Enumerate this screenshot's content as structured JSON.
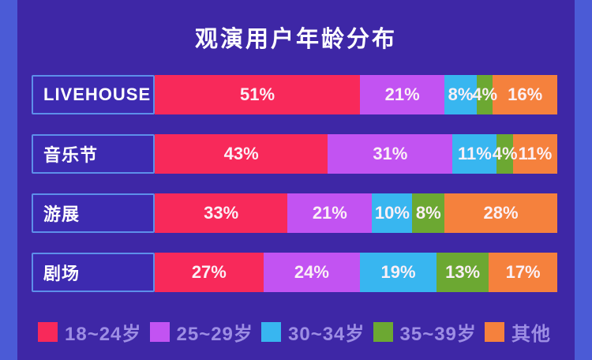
{
  "page": {
    "title": "观演用户年龄分布"
  },
  "colors": {
    "frame": "#4b5bd6",
    "panel_background": "#3e27a6",
    "label_box_background": "#3d2ab0",
    "label_box_border": "#5d8fea",
    "bar_value_text": "#fbf0f6",
    "legend_text": "#9d8ee4",
    "title_text": "#ffffff"
  },
  "chart_data": {
    "type": "bar",
    "orientation": "horizontal-stacked",
    "title": "观演用户年龄分布",
    "categories": [
      "LIVEHOUSE",
      "音乐节",
      "游展",
      "剧场"
    ],
    "series": [
      {
        "name": "18~24岁",
        "color": "#f8295a",
        "values": [
          51,
          43,
          33,
          27
        ]
      },
      {
        "name": "25~29岁",
        "color": "#c253f2",
        "values": [
          21,
          31,
          21,
          24
        ]
      },
      {
        "name": "30~34岁",
        "color": "#38b6f0",
        "values": [
          8,
          11,
          10,
          19
        ]
      },
      {
        "name": "35~39岁",
        "color": "#6ca832",
        "values": [
          4,
          4,
          8,
          13
        ]
      },
      {
        "name": "其他",
        "color": "#f5813d",
        "values": [
          16,
          11,
          28,
          17
        ]
      }
    ],
    "value_suffix": "%",
    "xlim": [
      0,
      100
    ],
    "grid": false,
    "legend_position": "bottom",
    "value_labels_shown": true
  }
}
